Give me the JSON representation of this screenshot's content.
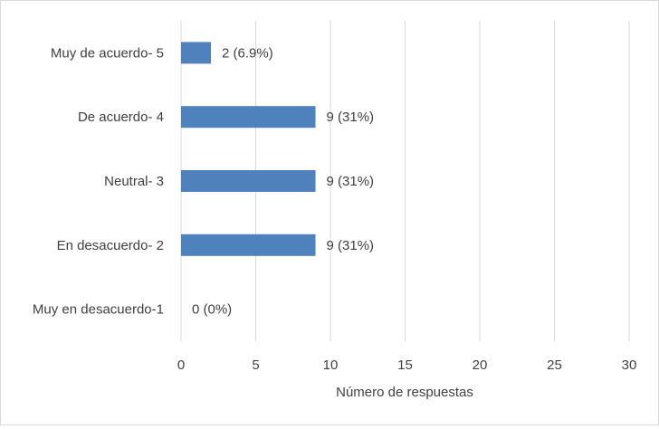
{
  "chart_data": {
    "type": "bar",
    "orientation": "horizontal",
    "categories": [
      "Muy de acuerdo- 5",
      "De acuerdo- 4",
      "Neutral- 3",
      "En desacuerdo- 2",
      "Muy en desacuerdo-1"
    ],
    "values": [
      2,
      9,
      9,
      9,
      0
    ],
    "data_labels": [
      "2 (6.9%)",
      "9 (31%)",
      "9 (31%)",
      "9 (31%)",
      "0 (0%)"
    ],
    "xlabel": "Número de respuestas",
    "ylabel": "",
    "xlim": [
      0,
      30
    ],
    "xticks": [
      0,
      5,
      10,
      15,
      20,
      25,
      30
    ],
    "grid": "vertical",
    "legend": "none",
    "bar_color": "#4f81bd",
    "grid_color": "#d9d9d9",
    "text_color": "#404040"
  }
}
